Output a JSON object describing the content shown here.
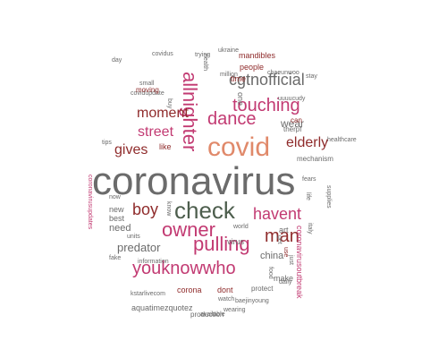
{
  "palette": {
    "gray": "#6b6b6b",
    "green": "#4d5e4d",
    "magenta": "#c23a72",
    "maroon": "#8f2b2b",
    "salmon": "#e0896a",
    "teal": "#3a6b68",
    "pale": "#b7b7b7"
  },
  "words": [
    "coronavirus",
    "covid",
    "check",
    "allnighter",
    "dance",
    "owner",
    "pulling",
    "havent",
    "youknowwho",
    "man",
    "touching",
    "moment",
    "street",
    "elderly",
    "boy",
    "gives",
    "cgtnofficial",
    "predator",
    "china",
    "wear",
    "dont",
    "corona",
    "aquatimezquotez",
    "production",
    "like",
    "need",
    "people",
    "time",
    "mandibles",
    "therpf",
    "can",
    "mechanism",
    "coronavirusoutbreak",
    "use",
    "make",
    "protect",
    "baejinyoung",
    "uuuucudy",
    "covidupdate",
    "moving",
    "small",
    "tips",
    "new",
    "best",
    "information",
    "kstarlivecom",
    "coronavirusupdates",
    "chaeunwoo",
    "health",
    "virus",
    "world",
    "art",
    "italy",
    "one",
    "buy",
    "now",
    "watch",
    "available",
    "daily",
    "just",
    "get",
    "food",
    "fake",
    "know",
    "units",
    "covidus",
    "million",
    "day",
    "trying",
    "healthcare",
    "supplies",
    "fears",
    "life",
    "wearing",
    "ukraine",
    "stay"
  ]
}
